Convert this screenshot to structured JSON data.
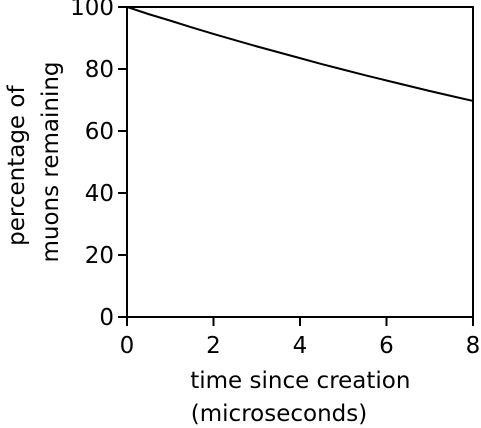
{
  "chart_data": {
    "type": "line",
    "ylabel_line1": "percentage of",
    "ylabel_line2": "muons remaining",
    "xlabel_line1": "time since creation",
    "xlabel_line2": "(microseconds)",
    "xlim": [
      0,
      8
    ],
    "ylim": [
      0,
      100
    ],
    "x_ticks": [
      0,
      2,
      4,
      6,
      8
    ],
    "y_ticks": [
      0,
      20,
      40,
      60,
      80,
      100
    ],
    "x_tick_labels": [
      "0",
      "2",
      "4",
      "6",
      "8"
    ],
    "y_tick_labels": [
      "0",
      "20",
      "40",
      "60",
      "80",
      "100"
    ],
    "grid": false,
    "series": [
      {
        "color": "#000000",
        "x": [
          0,
          0.5,
          1,
          1.5,
          2,
          2.5,
          3,
          3.5,
          4,
          4.5,
          5,
          5.5,
          6,
          6.5,
          7,
          7.5,
          8
        ],
        "y": [
          100,
          97.7,
          95.6,
          93.4,
          91.3,
          89.3,
          87.3,
          85.4,
          83.5,
          81.6,
          79.8,
          78.0,
          76.3,
          74.6,
          72.9,
          71.3,
          69.7
        ]
      }
    ]
  }
}
